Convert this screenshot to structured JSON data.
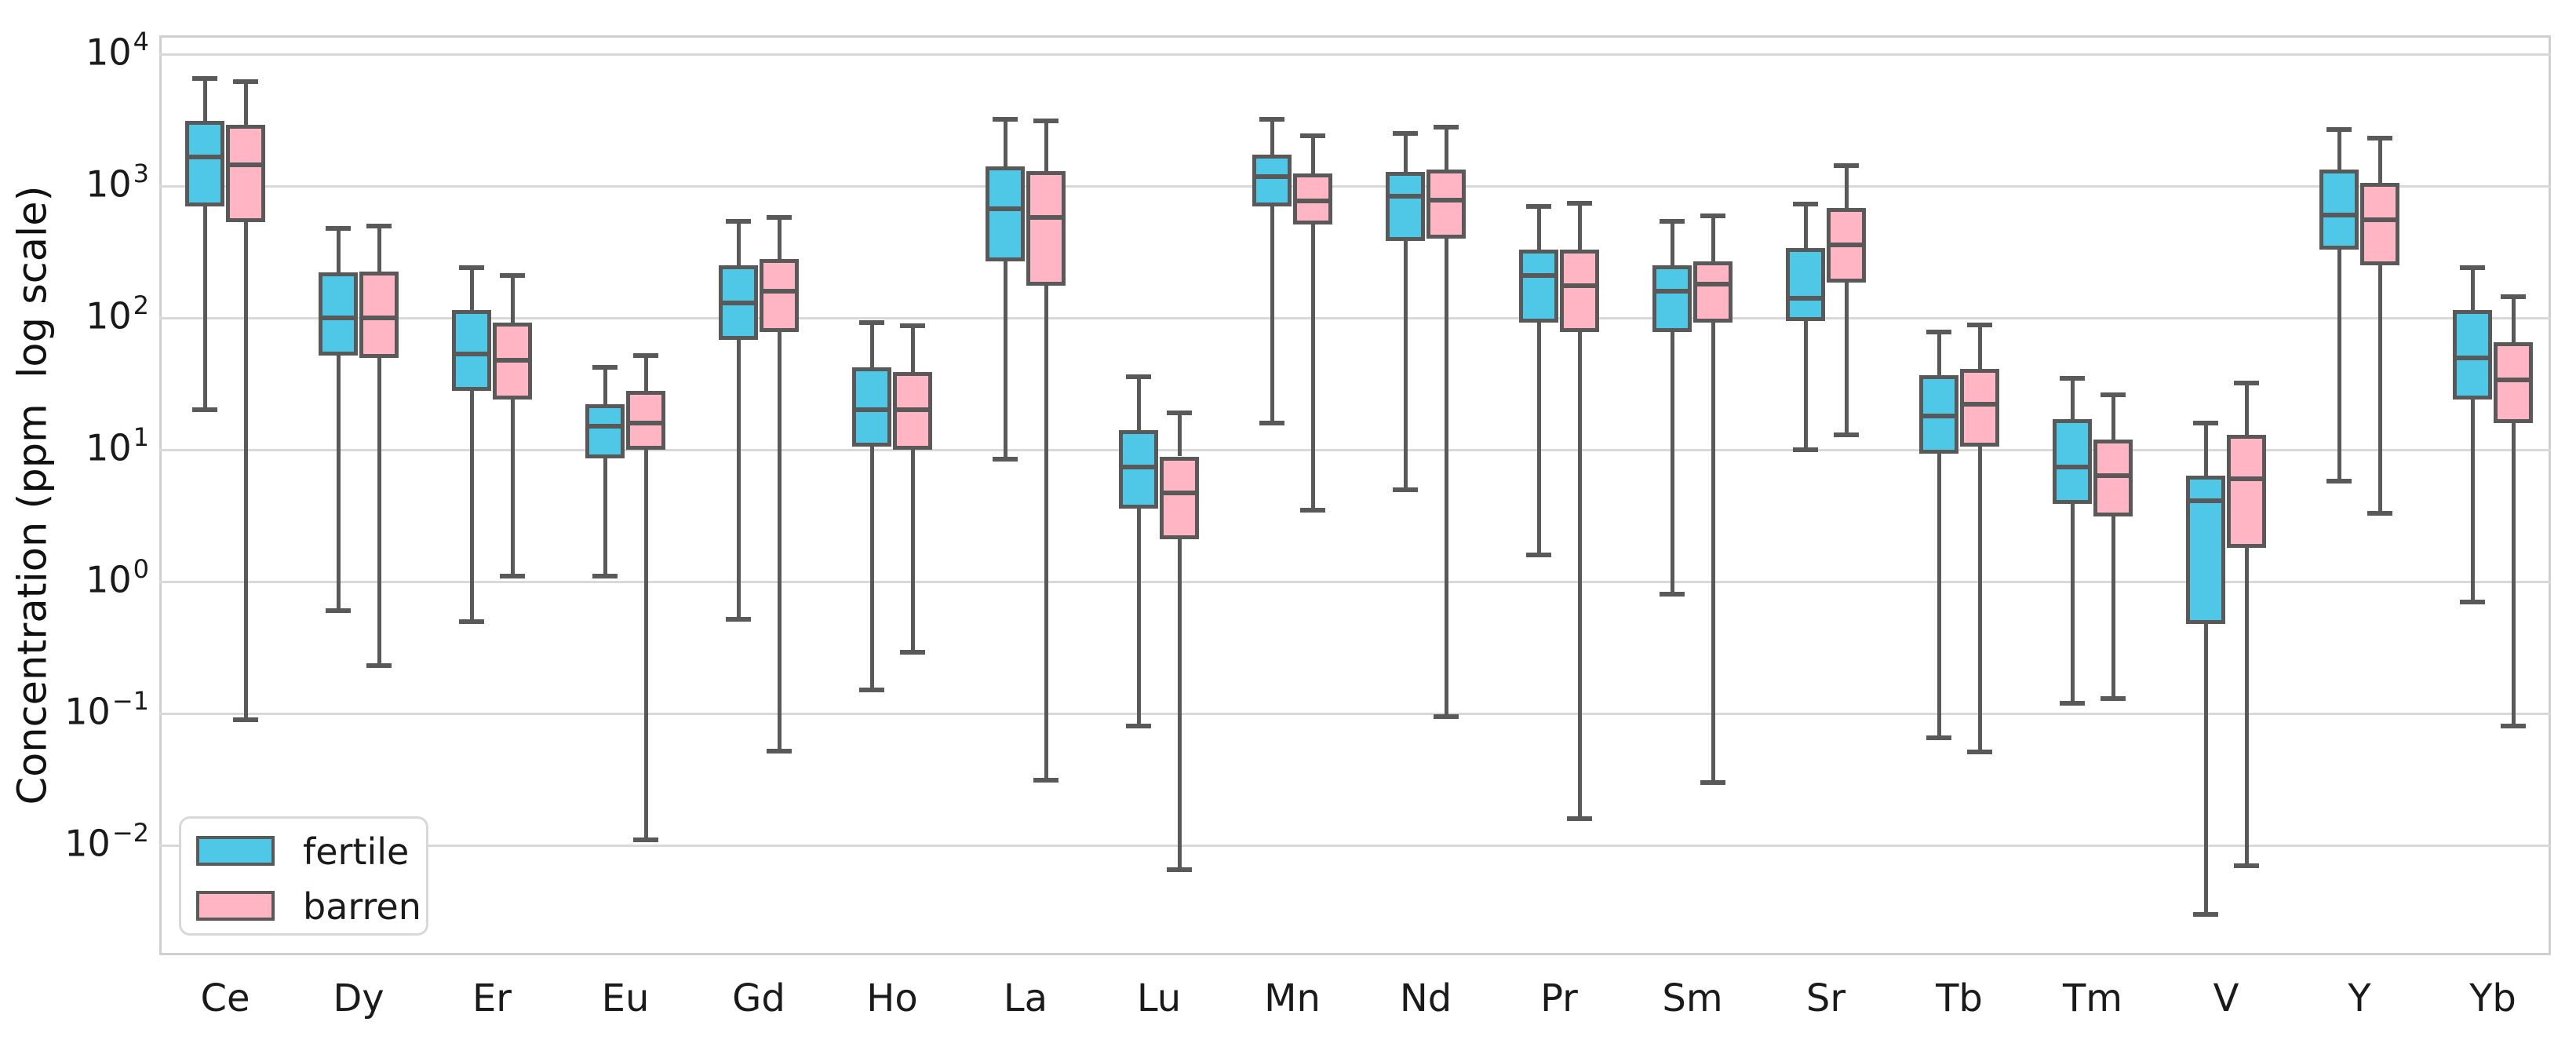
{
  "chart_data": {
    "type": "boxplot",
    "title": "",
    "xlabel": "",
    "ylabel": "Concentration (ppm  log scale)",
    "yscale": "log",
    "ylim": [
      0.0015,
      14000
    ],
    "y_tick_exponents": [
      4,
      3,
      2,
      1,
      0,
      -1,
      -2
    ],
    "grid": "horizontal",
    "legend_position": "lower left",
    "categories": [
      "Ce",
      "Dy",
      "Er",
      "Eu",
      "Gd",
      "Ho",
      "La",
      "Lu",
      "Mn",
      "Nd",
      "Pr",
      "Sm",
      "Sr",
      "Tb",
      "Tm",
      "V",
      "Y",
      "Yb"
    ],
    "series": [
      {
        "name": "fertile",
        "color": "#4FC8E7",
        "boxes": [
          {
            "low": 20,
            "q1": 700,
            "median": 1650,
            "q3": 3100,
            "high": 6500
          },
          {
            "low": 0.6,
            "q1": 52,
            "median": 100,
            "q3": 220,
            "high": 480
          },
          {
            "low": 0.5,
            "q1": 28,
            "median": 53,
            "q3": 115,
            "high": 240
          },
          {
            "low": 1.1,
            "q1": 8.6,
            "median": 15,
            "q3": 22,
            "high": 42
          },
          {
            "low": 0.52,
            "q1": 68,
            "median": 130,
            "q3": 250,
            "high": 540
          },
          {
            "low": 0.15,
            "q1": 10.5,
            "median": 20,
            "q3": 42,
            "high": 92
          },
          {
            "low": 8.5,
            "q1": 270,
            "median": 670,
            "q3": 1400,
            "high": 3200
          },
          {
            "low": 0.08,
            "q1": 3.6,
            "median": 7.4,
            "q3": 14,
            "high": 36
          },
          {
            "low": 16,
            "q1": 700,
            "median": 1180,
            "q3": 1740,
            "high": 3200
          },
          {
            "low": 5,
            "q1": 385,
            "median": 840,
            "q3": 1280,
            "high": 2500
          },
          {
            "low": 1.6,
            "q1": 92,
            "median": 210,
            "q3": 330,
            "high": 700
          },
          {
            "low": 0.8,
            "q1": 78,
            "median": 160,
            "q3": 250,
            "high": 540
          },
          {
            "low": 10,
            "q1": 95,
            "median": 140,
            "q3": 340,
            "high": 730
          },
          {
            "low": 0.065,
            "q1": 9.4,
            "median": 18,
            "q3": 37,
            "high": 78
          },
          {
            "low": 0.12,
            "q1": 3.9,
            "median": 7.4,
            "q3": 17,
            "high": 35
          },
          {
            "low": 0.003,
            "q1": 0.48,
            "median": 4.1,
            "q3": 6.4,
            "high": 16
          },
          {
            "low": 5.8,
            "q1": 330,
            "median": 600,
            "q3": 1330,
            "high": 2700
          },
          {
            "low": 0.7,
            "q1": 24,
            "median": 50,
            "q3": 115,
            "high": 240
          }
        ]
      },
      {
        "name": "barren",
        "color": "#FFB5C3",
        "boxes": [
          {
            "low": 0.09,
            "q1": 530,
            "median": 1450,
            "q3": 2900,
            "high": 6200
          },
          {
            "low": 0.23,
            "q1": 50,
            "median": 100,
            "q3": 225,
            "high": 500
          },
          {
            "low": 1.1,
            "q1": 24,
            "median": 48,
            "q3": 92,
            "high": 210
          },
          {
            "low": 0.011,
            "q1": 10,
            "median": 16,
            "q3": 28,
            "high": 52
          },
          {
            "low": 0.052,
            "q1": 78,
            "median": 160,
            "q3": 280,
            "high": 580
          },
          {
            "low": 0.29,
            "q1": 10,
            "median": 20,
            "q3": 39,
            "high": 87
          },
          {
            "low": 0.031,
            "q1": 175,
            "median": 575,
            "q3": 1300,
            "high": 3100
          },
          {
            "low": 0.0065,
            "q1": 2.1,
            "median": 4.7,
            "q3": 8.9,
            "high": 19
          },
          {
            "low": 3.5,
            "q1": 510,
            "median": 770,
            "q3": 1250,
            "high": 2400
          },
          {
            "low": 0.095,
            "q1": 400,
            "median": 780,
            "q3": 1330,
            "high": 2800
          },
          {
            "low": 0.016,
            "q1": 78,
            "median": 176,
            "q3": 330,
            "high": 740
          },
          {
            "low": 0.03,
            "q1": 92,
            "median": 180,
            "q3": 270,
            "high": 590
          },
          {
            "low": 13,
            "q1": 185,
            "median": 360,
            "q3": 680,
            "high": 1430
          },
          {
            "low": 0.051,
            "q1": 10.5,
            "median": 22,
            "q3": 41,
            "high": 89
          },
          {
            "low": 0.13,
            "q1": 3.1,
            "median": 6.4,
            "q3": 12,
            "high": 26
          },
          {
            "low": 0.007,
            "q1": 1.8,
            "median": 6,
            "q3": 13,
            "high": 32
          },
          {
            "low": 3.3,
            "q1": 250,
            "median": 555,
            "q3": 1050,
            "high": 2300
          },
          {
            "low": 0.08,
            "q1": 16,
            "median": 34,
            "q3": 65,
            "high": 145
          }
        ]
      }
    ],
    "legend": {
      "items": [
        {
          "label": "fertile",
          "color": "#4FC8E7"
        },
        {
          "label": "barren",
          "color": "#FFB5C3"
        }
      ]
    },
    "colors": {
      "fertile_fill": "#4FC8E7",
      "barren_fill": "#FFB5C3",
      "box_edge": "#595959",
      "gridline": "#D9D9D9",
      "spine": "#CFCFCF",
      "text": "#1A1A1A",
      "background": "#FFFFFF"
    }
  }
}
